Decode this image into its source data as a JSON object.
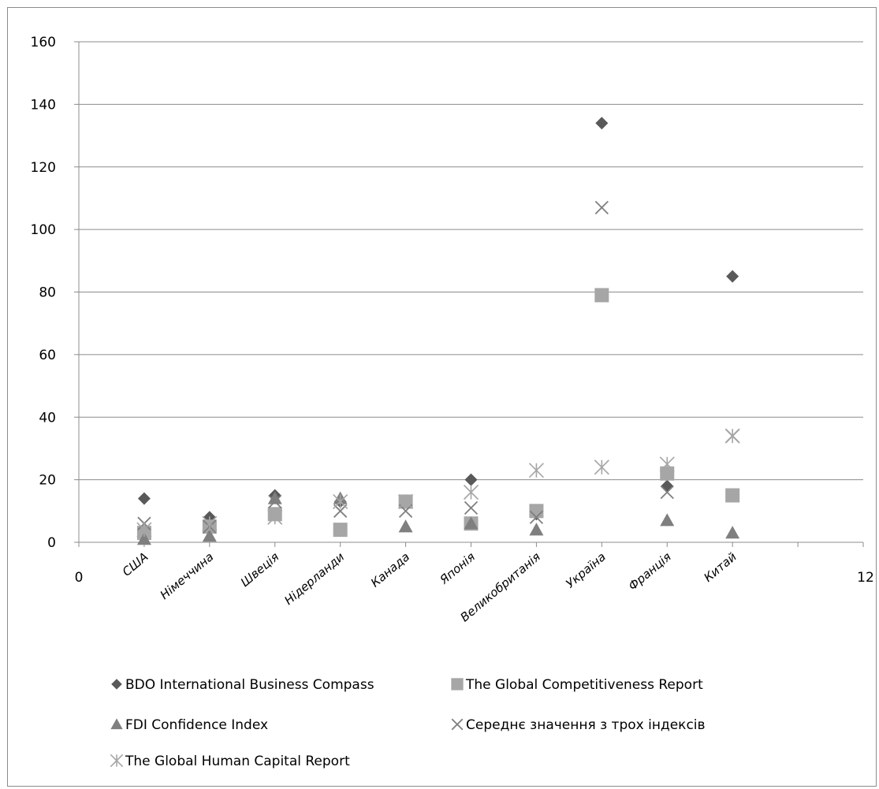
{
  "chart_data": {
    "type": "scatter",
    "title": "",
    "xlabel": "",
    "ylabel": "",
    "xlim": [
      0,
      12
    ],
    "ylim": [
      0,
      160
    ],
    "y_ticks": [
      0,
      20,
      40,
      60,
      80,
      100,
      120,
      140,
      160
    ],
    "x_tick_labels": [
      "0",
      "12"
    ],
    "categories": [
      "США",
      "Німеччина",
      "Швеція",
      "Нідерланди",
      "Канада",
      "Японія",
      "Великобританія",
      "Україна",
      "Франція",
      "Китай"
    ],
    "category_x": [
      1,
      2,
      3,
      4,
      5,
      6,
      7,
      8,
      9,
      10
    ],
    "grid": "horizontal",
    "legend_position": "bottom",
    "series": [
      {
        "name": "BDO International  Business Compass",
        "marker": "diamond",
        "color": "#595959",
        "values": [
          14,
          8,
          15,
          13,
          13,
          20,
          9,
          134,
          18,
          85
        ]
      },
      {
        "name": "The Global  Competitiveness  Report",
        "marker": "square",
        "color": "#a6a6a6",
        "values": [
          3,
          5,
          9,
          4,
          13,
          6,
          10,
          79,
          22,
          15
        ]
      },
      {
        "name": "FDI Confidence Index",
        "marker": "triangle",
        "color": "#7f7f7f",
        "values": [
          1,
          2,
          14,
          14,
          5,
          6,
          4,
          null,
          7,
          3
        ]
      },
      {
        "name": "Середнє значення з трох індексів",
        "marker": "x",
        "color": "#7f7f7f",
        "values": [
          6,
          5,
          13,
          10,
          10,
          11,
          8,
          107,
          16,
          34
        ]
      },
      {
        "name": "The Global  Human  Capital  Report",
        "marker": "asterisk",
        "color": "#a6a6a6",
        "values": [
          4,
          6,
          8,
          13,
          13,
          16,
          23,
          24,
          25,
          34
        ]
      }
    ]
  }
}
